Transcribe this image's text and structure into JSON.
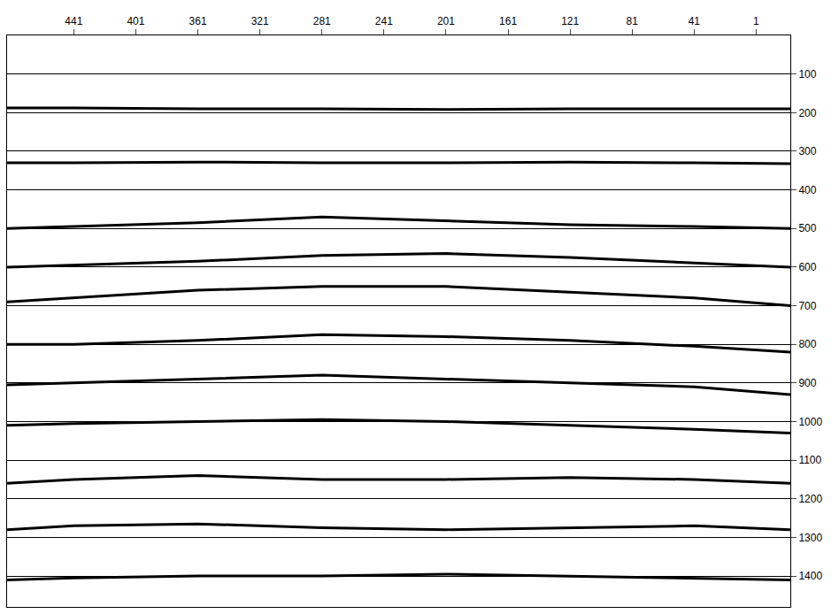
{
  "chart_data": {
    "type": "line",
    "x": [
      484,
      441,
      361,
      281,
      201,
      121,
      41,
      -21
    ],
    "series": [
      {
        "color": "#000000",
        "values": [
          188,
          188,
          190,
          190,
          192,
          190,
          190,
          190
        ]
      },
      {
        "color": "#000000",
        "values": [
          330,
          330,
          328,
          330,
          330,
          328,
          330,
          332
        ]
      },
      {
        "color": "#000000",
        "values": [
          500,
          495,
          485,
          470,
          480,
          490,
          495,
          500
        ]
      },
      {
        "color": "#000000",
        "values": [
          600,
          595,
          585,
          570,
          565,
          575,
          590,
          600
        ]
      },
      {
        "color": "#000000",
        "values": [
          690,
          680,
          660,
          650,
          650,
          665,
          680,
          700
        ]
      },
      {
        "color": "#000000",
        "values": [
          800,
          800,
          790,
          775,
          780,
          790,
          805,
          820
        ]
      },
      {
        "color": "#000000",
        "values": [
          905,
          900,
          890,
          880,
          890,
          900,
          910,
          930
        ]
      },
      {
        "color": "#000000",
        "values": [
          1010,
          1005,
          1000,
          995,
          1000,
          1010,
          1020,
          1030
        ]
      },
      {
        "color": "#000000",
        "values": [
          1160,
          1150,
          1140,
          1150,
          1150,
          1145,
          1150,
          1160
        ]
      },
      {
        "color": "#000000",
        "values": [
          1280,
          1270,
          1265,
          1275,
          1280,
          1275,
          1270,
          1280
        ]
      },
      {
        "color": "#000000",
        "values": [
          1410,
          1405,
          1400,
          1400,
          1395,
          1400,
          1405,
          1410
        ]
      }
    ],
    "xlim": [
      484,
      -21
    ],
    "xticks": [
      441,
      401,
      361,
      321,
      281,
      241,
      201,
      161,
      121,
      81,
      41,
      1
    ],
    "ylim": [
      1480,
      0
    ],
    "yticks": [
      100,
      200,
      300,
      400,
      500,
      600,
      700,
      800,
      900,
      1000,
      1100,
      1200,
      1300,
      1400
    ],
    "grid": true
  }
}
